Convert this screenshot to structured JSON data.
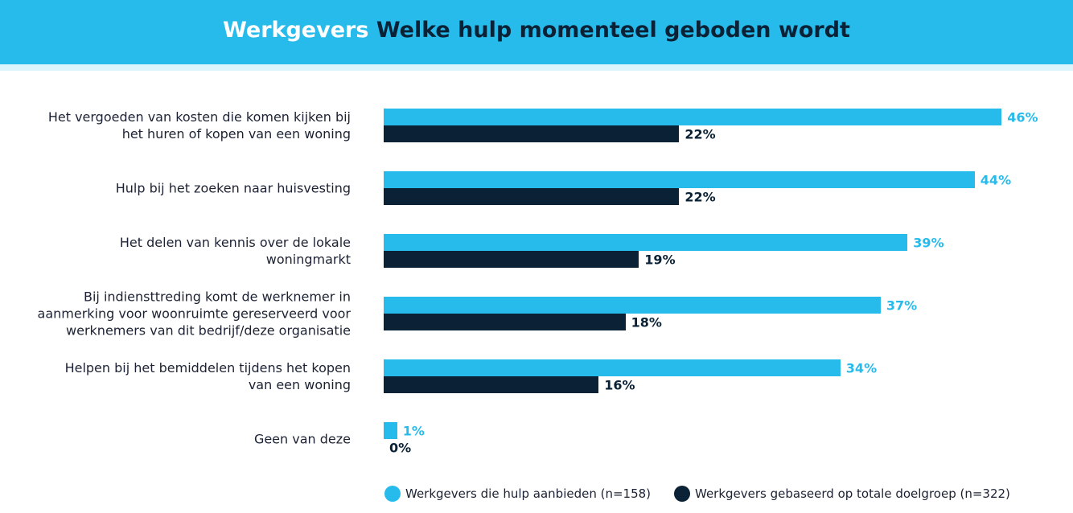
{
  "chart_data": {
    "type": "bar",
    "orientation": "horizontal",
    "title": [
      "Werkgevers",
      "Welke hulp momenteel geboden wordt"
    ],
    "categories": [
      "Het vergoeden van kosten die komen kijken bij\nhet huren of kopen van een woning",
      "Hulp bij het zoeken naar huisvesting",
      "Het delen van kennis over de lokale\nwoningmarkt",
      "Bij indiensttreding komt de werknemer in\naanmerking voor woonruimte gereserveerd voor\nwerknemers van dit bedrijf/deze organisatie",
      "Helpen bij het bemiddelen tijdens het kopen\nvan een woning",
      "Geen van deze"
    ],
    "series": [
      {
        "name": "Werkgevers die hulp aanbieden (n=158)",
        "color": "#27bbec",
        "values": [
          46,
          44,
          39,
          37,
          34,
          1
        ],
        "value_labels": [
          "46%",
          "44%",
          "39%",
          "37%",
          "34%",
          "1%"
        ]
      },
      {
        "name": "Werkgevers gebaseerd op totale doelgroep (n=322)",
        "color": "#0b2236",
        "values": [
          22,
          22,
          19,
          18,
          16,
          0
        ],
        "value_labels": [
          "22%",
          "22%",
          "19%",
          "18%",
          "16%",
          "0%"
        ]
      }
    ],
    "legend": "bottom"
  }
}
